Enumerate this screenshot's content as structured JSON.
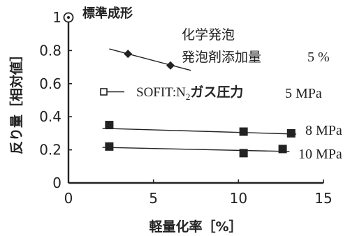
{
  "chart_data": {
    "type": "scatter",
    "xlabel": "軽量化率［%］",
    "ylabel": "反り量［相対値］",
    "xlim": [
      0,
      15
    ],
    "ylim": [
      0,
      1
    ],
    "x_ticks": [
      "0",
      "5",
      "10",
      "15"
    ],
    "y_ticks": [
      "0",
      "0.2",
      "0.4",
      "0.6",
      "0.8",
      "1"
    ],
    "grid": false,
    "reference": {
      "name": "標準成形",
      "x": 0,
      "y": 1,
      "marker": "circle-dot"
    },
    "series": [
      {
        "name_line1": "化学発泡",
        "name_line2": "発泡剤添加量",
        "param": "5 %",
        "marker": "diamond",
        "points": [
          [
            3.5,
            0.78
          ],
          [
            6.0,
            0.71
          ]
        ],
        "trend": [
          [
            2.4,
            0.81
          ],
          [
            7.2,
            0.68
          ]
        ]
      },
      {
        "name": "SOFIT:N₂ガス圧力",
        "name_main": "SOFIT:N",
        "name_sub": "2",
        "name_suffix": "ガス圧力",
        "param": "5 MPa",
        "marker": "open-square",
        "points": []
      },
      {
        "param": "8 MPa",
        "marker": "square",
        "points": [
          [
            2.4,
            0.35
          ],
          [
            10.3,
            0.31
          ],
          [
            13.1,
            0.3
          ]
        ],
        "trend": [
          [
            2.0,
            0.33
          ],
          [
            13.4,
            0.295
          ]
        ]
      },
      {
        "param": "10 MPa",
        "marker": "square",
        "points": [
          [
            2.4,
            0.22
          ],
          [
            10.3,
            0.18
          ],
          [
            12.6,
            0.205
          ]
        ],
        "trend": [
          [
            2.0,
            0.215
          ],
          [
            13.0,
            0.19
          ]
        ]
      }
    ]
  }
}
